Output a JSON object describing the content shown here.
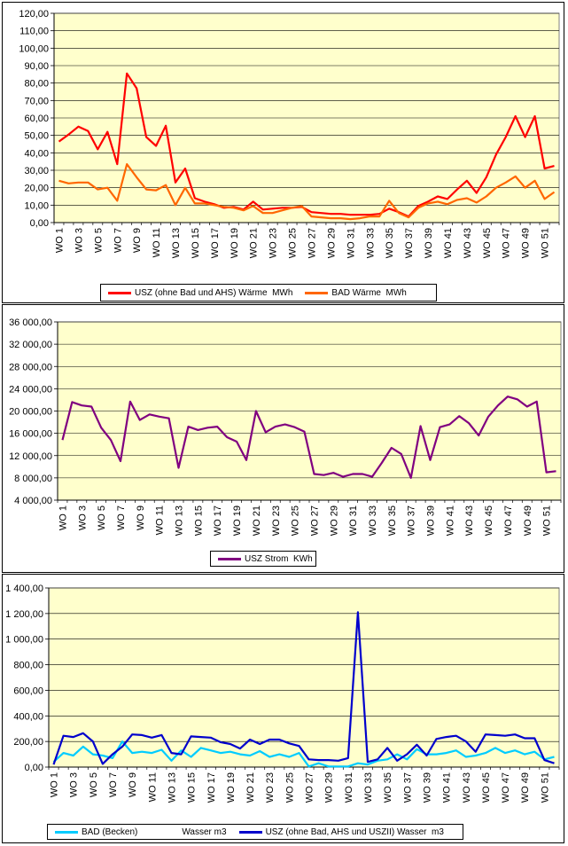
{
  "chart_data": [
    {
      "type": "line",
      "title": "",
      "xlabel": "",
      "ylabel": "",
      "ylim": [
        0,
        120
      ],
      "yticks": [
        "0,00",
        "10,00",
        "20,00",
        "30,00",
        "40,00",
        "50,00",
        "60,00",
        "70,00",
        "80,00",
        "90,00",
        "100,00",
        "110,00",
        "120,00"
      ],
      "xtick_labels": [
        "WO 1",
        "WO 3",
        "WO 5",
        "WO 7",
        "WO 9",
        "WO 11",
        "WO 13",
        "WO 15",
        "WO 17",
        "WO 19",
        "WO 21",
        "WO 23",
        "WO 25",
        "WO 27",
        "WO 29",
        "WO 31",
        "WO 33",
        "WO 35",
        "WO 37",
        "WO 39",
        "WO 41",
        "WO 43",
        "WO 45",
        "WO 47",
        "WO 49",
        "WO 51"
      ],
      "x": [
        "WO 1",
        "WO 2",
        "WO 3",
        "WO 4",
        "WO 5",
        "WO 6",
        "WO 7",
        "WO 8",
        "WO 9",
        "WO 10",
        "WO 11",
        "WO 12",
        "WO 13",
        "WO 14",
        "WO 15",
        "WO 16",
        "WO 17",
        "WO 18",
        "WO 19",
        "WO 20",
        "WO 21",
        "WO 22",
        "WO 23",
        "WO 24",
        "WO 25",
        "WO 26",
        "WO 27",
        "WO 28",
        "WO 29",
        "WO 30",
        "WO 31",
        "WO 32",
        "WO 33",
        "WO 34",
        "WO 35",
        "WO 36",
        "WO 37",
        "WO 38",
        "WO 39",
        "WO 40",
        "WO 41",
        "WO 42",
        "WO 43",
        "WO 44",
        "WO 45",
        "WO 46",
        "WO 47",
        "WO 48",
        "WO 49",
        "WO 50",
        "WO 51",
        "WO 52"
      ],
      "legend_position": "bottom",
      "grid": true,
      "series": [
        {
          "name": "USZ (ohne Bad und AHS) Wärme  MWh",
          "color": "#ff0000",
          "values": [
            46.5,
            50.5,
            55,
            52.5,
            42,
            52,
            33.5,
            85.5,
            77,
            49,
            44,
            55.5,
            23,
            31,
            14,
            12,
            10.5,
            8.5,
            9,
            7.5,
            12,
            7.5,
            8,
            8.5,
            8.5,
            9,
            6,
            5.5,
            5,
            5,
            4.5,
            4.5,
            4.5,
            5,
            8,
            6,
            3.5,
            9.5,
            12,
            15,
            13.5,
            19,
            24,
            17,
            26,
            39,
            49,
            61,
            49,
            61,
            31,
            32.5
          ]
        },
        {
          "name": "BAD Wärme  MWh",
          "color": "#ff6600",
          "values": [
            24,
            22.5,
            23,
            23,
            19,
            20,
            12.5,
            33.5,
            26,
            19,
            18.5,
            21.5,
            10,
            20,
            11,
            11,
            10,
            9,
            8.5,
            7,
            9.5,
            5.5,
            5.5,
            7,
            8.5,
            9.5,
            3.5,
            3,
            2.5,
            2.5,
            2,
            2.5,
            3.5,
            3.5,
            12.5,
            5.5,
            3,
            8.5,
            11,
            12,
            10.5,
            13,
            14,
            11.5,
            15,
            20,
            23,
            26.5,
            20,
            24,
            13.5,
            17.5
          ]
        }
      ]
    },
    {
      "type": "line",
      "title": "",
      "xlabel": "",
      "ylabel": "",
      "ylim": [
        4000,
        36000
      ],
      "yticks": [
        "4 000,00",
        "8 000,00",
        "12 000,00",
        "16 000,00",
        "20 000,00",
        "24 000,00",
        "28 000,00",
        "32 000,00",
        "36 000,00"
      ],
      "xtick_labels": [
        "WO 1",
        "WO 3",
        "WO 5",
        "WO 7",
        "WO 9",
        "WO 11",
        "WO 13",
        "WO 15",
        "WO 17",
        "WO 19",
        "WO 21",
        "WO 23",
        "WO 25",
        "WO 27",
        "WO 29",
        "WO 31",
        "WO 33",
        "WO 35",
        "WO 37",
        "WO 39",
        "WO 41",
        "WO 43",
        "WO 45",
        "WO 47",
        "WO 49",
        "WO 51"
      ],
      "x": [
        "WO 1",
        "WO 2",
        "WO 3",
        "WO 4",
        "WO 5",
        "WO 6",
        "WO 7",
        "WO 8",
        "WO 9",
        "WO 10",
        "WO 11",
        "WO 12",
        "WO 13",
        "WO 14",
        "WO 15",
        "WO 16",
        "WO 17",
        "WO 18",
        "WO 19",
        "WO 20",
        "WO 21",
        "WO 22",
        "WO 23",
        "WO 24",
        "WO 25",
        "WO 26",
        "WO 27",
        "WO 28",
        "WO 29",
        "WO 30",
        "WO 31",
        "WO 32",
        "WO 33",
        "WO 34",
        "WO 35",
        "WO 36",
        "WO 37",
        "WO 38",
        "WO 39",
        "WO 40",
        "WO 41",
        "WO 42",
        "WO 43",
        "WO 44",
        "WO 45",
        "WO 46",
        "WO 47",
        "WO 48",
        "WO 49",
        "WO 50",
        "WO 51",
        "WO 52"
      ],
      "legend_position": "bottom",
      "grid": true,
      "series": [
        {
          "name": "USZ Strom  KWh",
          "color": "#800080",
          "values": [
            14800,
            21600,
            21000,
            20800,
            17000,
            14800,
            11000,
            21700,
            18400,
            19400,
            19000,
            18700,
            9800,
            17200,
            16600,
            17000,
            17200,
            15300,
            14500,
            11200,
            20000,
            16200,
            17200,
            17600,
            17100,
            16300,
            8700,
            8500,
            8900,
            8200,
            8700,
            8700,
            8200,
            10700,
            13400,
            12300,
            8000,
            17300,
            11200,
            17100,
            17600,
            19100,
            17800,
            15600,
            19000,
            21000,
            22600,
            22100,
            20800,
            21700,
            9000,
            9200
          ]
        }
      ]
    },
    {
      "type": "line",
      "title": "",
      "xlabel": "",
      "ylabel": "",
      "ylim": [
        0,
        1400
      ],
      "yticks": [
        "0,00",
        "200,00",
        "400,00",
        "600,00",
        "800,00",
        "1 000,00",
        "1 200,00",
        "1 400,00"
      ],
      "xtick_labels": [
        "WO 1",
        "WO 3",
        "WO 5",
        "WO 7",
        "WO 9",
        "WO 11",
        "WO 13",
        "WO 15",
        "WO 17",
        "WO 19",
        "WO 21",
        "WO 23",
        "WO 25",
        "WO 27",
        "WO 29",
        "WO 31",
        "WO 33",
        "WO 35",
        "WO 37",
        "WO 39",
        "WO 41",
        "WO 43",
        "WO 45",
        "WO 47",
        "WO 49",
        "WO 51"
      ],
      "x": [
        "WO 1",
        "WO 2",
        "WO 3",
        "WO 4",
        "WO 5",
        "WO 6",
        "WO 7",
        "WO 8",
        "WO 9",
        "WO 10",
        "WO 11",
        "WO 12",
        "WO 13",
        "WO 14",
        "WO 15",
        "WO 16",
        "WO 17",
        "WO 18",
        "WO 19",
        "WO 20",
        "WO 21",
        "WO 22",
        "WO 23",
        "WO 24",
        "WO 25",
        "WO 26",
        "WO 27",
        "WO 28",
        "WO 29",
        "WO 30",
        "WO 31",
        "WO 32",
        "WO 33",
        "WO 34",
        "WO 35",
        "WO 36",
        "WO 37",
        "WO 38",
        "WO 39",
        "WO 40",
        "WO 41",
        "WO 42",
        "WO 43",
        "WO 44",
        "WO 45",
        "WO 46",
        "WO 47",
        "WO 48",
        "WO 49",
        "WO 50",
        "WO 51",
        "WO 52"
      ],
      "legend_position": "bottom",
      "grid": true,
      "series": [
        {
          "name": "BAD (Becken)                  Wasser m3",
          "color": "#00ccff",
          "values": [
            40,
            110,
            90,
            160,
            100,
            90,
            70,
            200,
            110,
            120,
            110,
            135,
            50,
            130,
            80,
            150,
            130,
            110,
            120,
            100,
            90,
            125,
            80,
            100,
            80,
            110,
            5,
            30,
            5,
            5,
            5,
            30,
            20,
            50,
            60,
            100,
            60,
            140,
            100,
            100,
            110,
            130,
            80,
            90,
            110,
            150,
            110,
            130,
            100,
            120,
            60,
            80
          ]
        },
        {
          "name": "USZ (ohne Bad, AHS und USZII) Wasser  m3",
          "color": "#0000cc",
          "values": [
            20,
            245,
            235,
            265,
            200,
            25,
            100,
            160,
            255,
            250,
            230,
            250,
            110,
            100,
            240,
            235,
            230,
            195,
            180,
            145,
            215,
            180,
            215,
            215,
            185,
            165,
            60,
            55,
            55,
            50,
            70,
            1210,
            40,
            60,
            150,
            50,
            100,
            175,
            90,
            220,
            235,
            245,
            200,
            120,
            255,
            250,
            245,
            255,
            225,
            225,
            55,
            30
          ]
        }
      ]
    }
  ]
}
